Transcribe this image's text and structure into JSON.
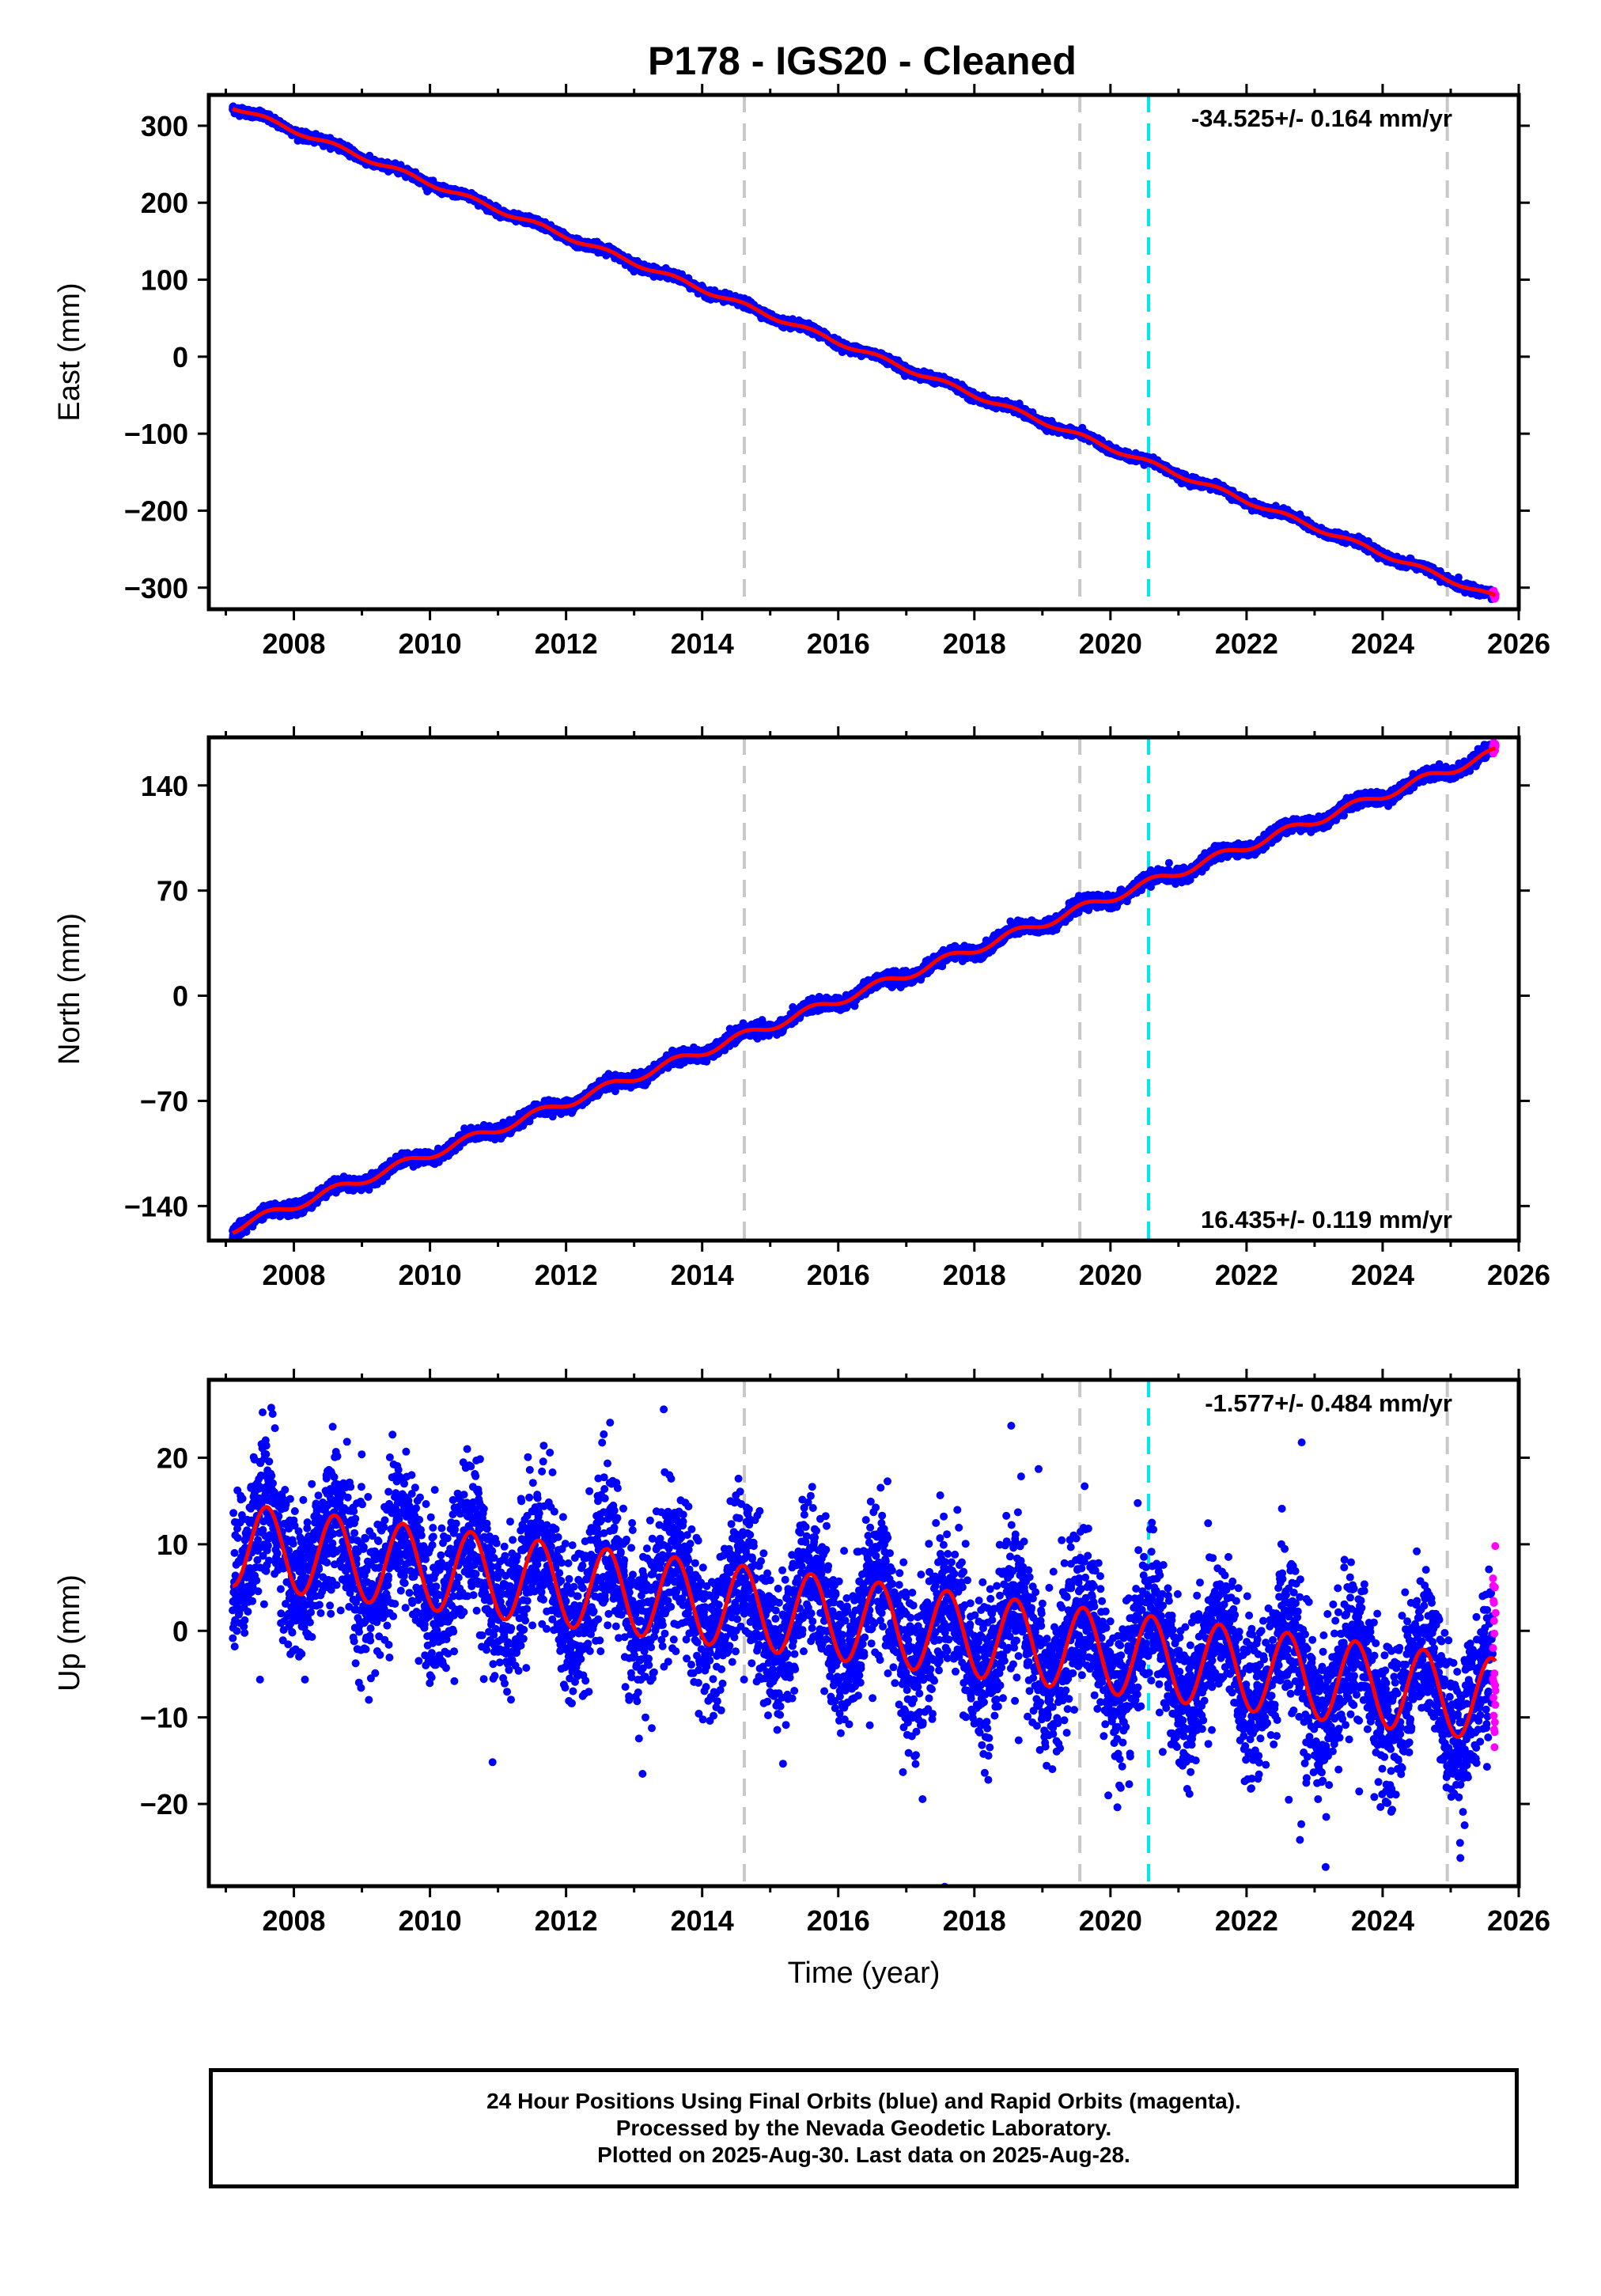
{
  "title": "P178  - IGS20 - Cleaned",
  "colors": {
    "final_points": "#0000ff",
    "rapid_points": "#ff00ff",
    "model_fit": "#ff0000",
    "equipment_change_line": "#c8c8c8",
    "earthquake_line": "#00e5ee"
  },
  "chart_data": [
    {
      "type": "scatter",
      "ylabel": "East (mm)",
      "xlabel": "",
      "xlim": [
        2006.75,
        2026.0
      ],
      "ylim": [
        -328,
        340
      ],
      "x_ticks": [
        2008,
        2010,
        2012,
        2014,
        2016,
        2018,
        2020,
        2022,
        2024,
        2026
      ],
      "y_ticks": [
        300,
        200,
        100,
        0,
        -100,
        -200,
        -300
      ],
      "y_tick_labels": [
        "300",
        "200",
        "100",
        "0",
        "−100",
        "−200",
        "−300"
      ],
      "rate_label": "-34.525+/- 0.164 mm/yr",
      "rate_label_position": "top-right",
      "rate_mm_per_yr": -34.525,
      "start": [
        2007.1,
        325
      ],
      "end": [
        2025.66,
        -313
      ],
      "seasonal_amplitude": 3,
      "scatter_noise": 2.5,
      "vertical_lines_gray": [
        2014.62,
        2019.55,
        2024.95
      ],
      "vertical_lines_cyan": [
        2020.56
      ],
      "series": [
        {
          "name": "Final Orbits (blue)",
          "x_range": [
            2007.1,
            2025.62
          ]
        },
        {
          "name": "Rapid Orbits (magenta)",
          "x_range": [
            2025.62,
            2025.66
          ]
        },
        {
          "name": "Model fit (red)"
        }
      ]
    },
    {
      "type": "scatter",
      "ylabel": "North (mm)",
      "xlabel": "",
      "xlim": [
        2006.75,
        2026.0
      ],
      "ylim": [
        -163,
        172
      ],
      "x_ticks": [
        2008,
        2010,
        2012,
        2014,
        2016,
        2018,
        2020,
        2022,
        2024,
        2026
      ],
      "y_ticks": [
        140,
        70,
        0,
        -70,
        -140
      ],
      "y_tick_labels": [
        "140",
        "70",
        "0",
        "−70",
        "−140"
      ],
      "rate_label": "16.435+/- 0.119 mm/yr",
      "rate_label_position": "bottom-right",
      "rate_mm_per_yr": 16.435,
      "start": [
        2007.1,
        -155
      ],
      "end": [
        2025.66,
        162
      ],
      "seasonal_amplitude": 3,
      "scatter_noise": 2.0,
      "vertical_lines_gray": [
        2014.62,
        2019.55,
        2024.95
      ],
      "vertical_lines_cyan": [
        2020.56
      ],
      "series": [
        {
          "name": "Final Orbits (blue)",
          "x_range": [
            2007.1,
            2025.62
          ]
        },
        {
          "name": "Rapid Orbits (magenta)",
          "x_range": [
            2025.62,
            2025.66
          ]
        },
        {
          "name": "Model fit (red)"
        }
      ]
    },
    {
      "type": "scatter",
      "ylabel": "Up (mm)",
      "xlabel": "Time (year)",
      "xlim": [
        2006.75,
        2026.0
      ],
      "ylim": [
        -29.5,
        29
      ],
      "x_ticks": [
        2008,
        2010,
        2012,
        2014,
        2016,
        2018,
        2020,
        2022,
        2024,
        2026
      ],
      "y_ticks": [
        20,
        10,
        0,
        -10,
        -20
      ],
      "y_tick_labels": [
        "20",
        "10",
        "0",
        "−10",
        "−20"
      ],
      "rate_label": "-1.577+/- 0.484 mm/yr",
      "rate_label_position": "top-right",
      "rate_mm_per_yr": -1.577,
      "start": [
        2007.1,
        10
      ],
      "end": [
        2025.66,
        -8
      ],
      "seasonal_amplitude": 4.8,
      "scatter_noise": 4.2,
      "vertical_lines_gray": [
        2014.62,
        2019.55,
        2024.95
      ],
      "vertical_lines_cyan": [
        2020.56
      ],
      "series": [
        {
          "name": "Final Orbits (blue)",
          "x_range": [
            2007.1,
            2025.62
          ]
        },
        {
          "name": "Rapid Orbits (magenta)",
          "x_range": [
            2025.62,
            2025.66
          ]
        },
        {
          "name": "Model fit (red)"
        }
      ]
    }
  ],
  "caption": {
    "line1": "24 Hour Positions Using Final Orbits (blue) and Rapid Orbits (magenta).",
    "line2": "Processed by the Nevada Geodetic Laboratory.",
    "line3": "Plotted on 2025-Aug-30. Last data on 2025-Aug-28."
  }
}
